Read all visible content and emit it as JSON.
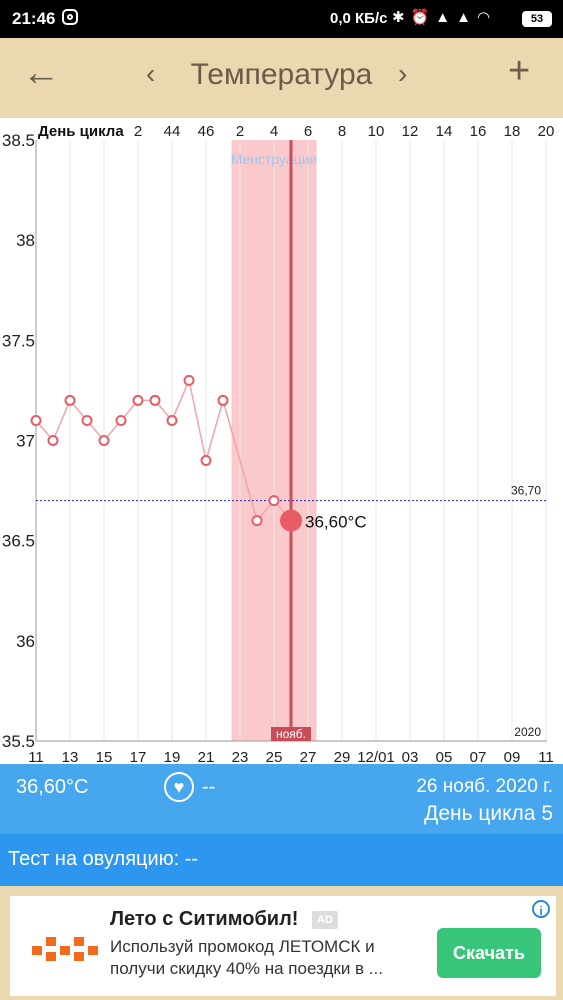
{
  "status_bar": {
    "time": "21:46",
    "net_speed": "0,0 КБ/с",
    "icons": [
      "instagram-icon",
      "bluetooth-icon",
      "alarm-icon",
      "signal-icon",
      "signal-icon",
      "wifi-icon"
    ],
    "battery": "53"
  },
  "toolbar": {
    "title": "Температура",
    "back_icon": "arrow-left-icon",
    "prev_icon": "chevron-left-icon",
    "next_icon": "chevron-right-icon",
    "add_icon": "plus-icon"
  },
  "chart_data": {
    "type": "line",
    "cycle_day_label": "День цикла",
    "cycle_day_ticks": [
      "2",
      "44",
      "46",
      "2",
      "4",
      "6",
      "8",
      "10",
      "12",
      "14",
      "16",
      "18",
      "20"
    ],
    "date_ticks": [
      "11",
      "13",
      "15",
      "17",
      "19",
      "21",
      "23",
      "25",
      "27",
      "29",
      "12/01",
      "03",
      "05",
      "07",
      "09",
      "11"
    ],
    "y_ticks": [
      "38.5",
      "38",
      "37.5",
      "37",
      "36.5",
      "36",
      "35.5"
    ],
    "ylim": [
      35.5,
      38.5
    ],
    "series": [
      {
        "x": [
          0,
          1,
          2,
          3,
          4,
          5,
          6,
          7,
          8,
          9,
          10,
          11,
          13,
          14,
          15
        ],
        "values": [
          37.1,
          37.0,
          37.2,
          37.1,
          37.0,
          37.1,
          37.2,
          37.2,
          37.1,
          37.3,
          36.9,
          37.2,
          36.6,
          36.7,
          36.6
        ]
      }
    ],
    "coverline": {
      "value": 36.7,
      "label": "36,70"
    },
    "period_band_label": "Менструации",
    "period_band_range": [
      11.5,
      16.5
    ],
    "selected": {
      "x": 15,
      "value": 36.6,
      "label": "36,60°C"
    },
    "cursor_month_label": "нояб.",
    "year_label": "2020",
    "colors": {
      "line": "#e85c66",
      "band": "#f9c9cc",
      "cursor": "#c84d58",
      "coverline": "#2222aa",
      "band_label": "#9ec8ee"
    }
  },
  "info_bar": {
    "temperature": "36,60°C",
    "heart_value": "--",
    "date": "26 нояб. 2020 г.",
    "cycle_day": "День цикла 5"
  },
  "ovulation": {
    "text": "Тест на овуляцию: --"
  },
  "ad": {
    "headline": "Лето с Ситимобил!",
    "badge": "AD",
    "body": "Используй промокод ЛЕТОМСК и получи скидку 40% на поездки в ...",
    "cta": "Скачать"
  }
}
